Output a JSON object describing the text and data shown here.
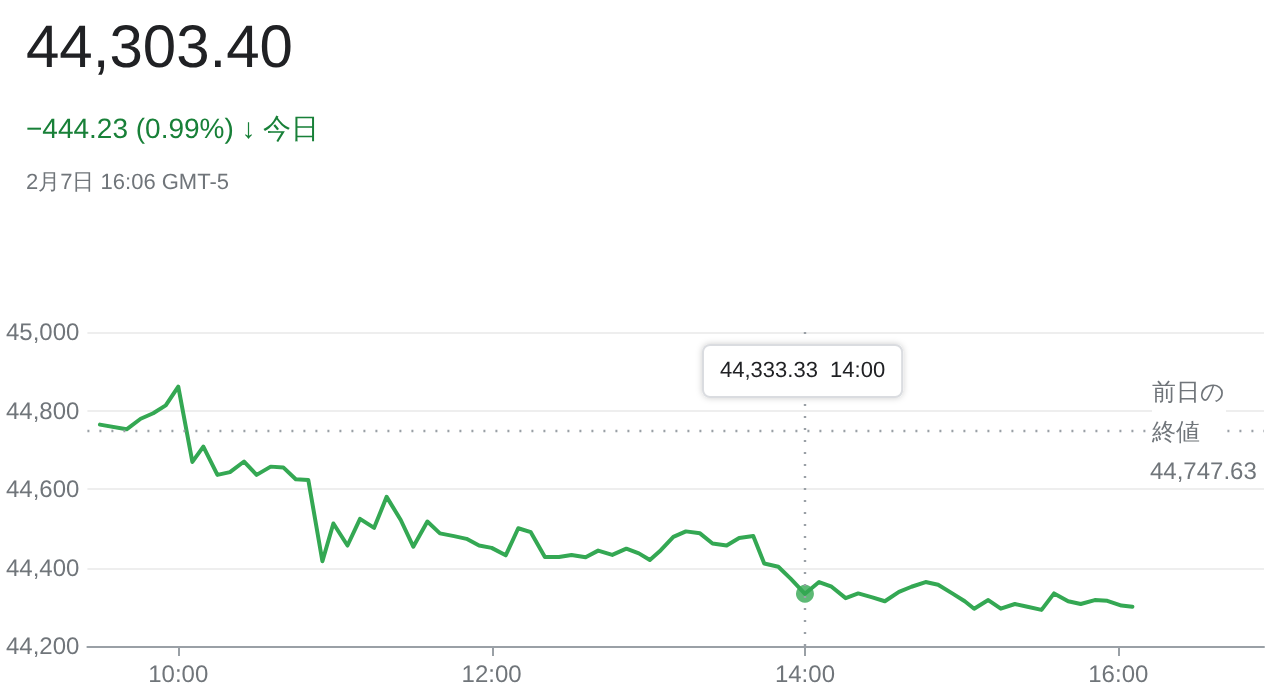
{
  "chart_data": {
    "type": "line",
    "title": "44,303.40",
    "subtitle": "−444.23 (0.99%) ↓ 今日",
    "annotations": [
      "2月7日 16:06 GMT-5",
      "44,333.33  14:00",
      "前日の終値"
    ],
    "x": [
      9.5,
      9.67,
      9.76,
      9.84,
      9.92,
      10.0,
      10.09,
      10.16,
      10.25,
      10.33,
      10.42,
      10.5,
      10.59,
      10.67,
      10.75,
      10.83,
      10.92,
      10.99,
      11.08,
      11.16,
      11.25,
      11.33,
      11.42,
      11.5,
      11.59,
      11.67,
      11.76,
      11.84,
      11.92,
      12.0,
      12.09,
      12.17,
      12.25,
      12.34,
      12.43,
      12.51,
      12.6,
      12.68,
      12.77,
      12.86,
      12.94,
      13.01,
      13.08,
      13.16,
      13.24,
      13.33,
      13.41,
      13.5,
      13.58,
      13.67,
      13.74,
      13.83,
      13.91,
      14.0,
      14.09,
      14.17,
      14.26,
      14.34,
      14.43,
      14.51,
      14.6,
      14.68,
      14.77,
      14.85,
      14.94,
      15.02,
      15.08,
      15.17,
      15.25,
      15.34,
      15.42,
      15.51,
      15.59,
      15.68,
      15.76,
      15.85,
      15.93,
      16.02,
      16.09
    ],
    "series": [
      {
        "color": "#34a853",
        "values": [
          44764,
          44752,
          44779,
          44793,
          44813,
          44861,
          44669,
          44708,
          44636,
          44643,
          44670,
          44636,
          44657,
          44655,
          44625,
          44623,
          44416,
          44512,
          44456,
          44524,
          44501,
          44580,
          44521,
          44453,
          44517,
          44487,
          44480,
          44473,
          44456,
          44450,
          44431,
          44500,
          44490,
          44427,
          44427,
          44432,
          44426,
          44443,
          44432,
          44448,
          44436,
          44419,
          44444,
          44478,
          44492,
          44487,
          44461,
          44456,
          44475,
          44480,
          44410,
          44402,
          44371,
          44333,
          44363,
          44351,
          44322,
          44334,
          44324,
          44314,
          44338,
          44351,
          44363,
          44356,
          44334,
          44314,
          44295,
          44317,
          44295,
          44307,
          44300,
          44292,
          44334,
          44314,
          44307,
          44317,
          44315,
          44303,
          44300
        ]
      },
      {
        "type": "scatter",
        "marker": "circle",
        "color": "#34a853",
        "x": [
          14
        ],
        "values": [
          44333
        ]
      }
    ],
    "xlim": [
      9.42,
      16.93
    ],
    "xticks": [
      {
        "value": 10,
        "label": "10:00"
      },
      {
        "value": 12,
        "label": "12:00"
      },
      {
        "value": 14,
        "label": "14:00"
      },
      {
        "value": 16,
        "label": "16:00"
      }
    ],
    "ylim": [
      44200,
      45000
    ],
    "yticks": [
      {
        "value": 44200,
        "label": "44,200"
      },
      {
        "value": 44400,
        "label": "44,400"
      },
      {
        "value": 44600,
        "label": "44,600"
      },
      {
        "value": 44800,
        "label": "44,800"
      },
      {
        "value": 45000,
        "label": "45,000"
      }
    ],
    "grid": "y",
    "marker": "none",
    "line_style": "solid",
    "ref_lines": [
      {
        "axis": "y",
        "value": 44747.63,
        "label": "44,747.63",
        "line_style": "dotted",
        "color": "#9aa0a6"
      },
      {
        "axis": "x",
        "value": 14,
        "line_style": "dotted",
        "color": "#9aa0a6"
      }
    ]
  }
}
